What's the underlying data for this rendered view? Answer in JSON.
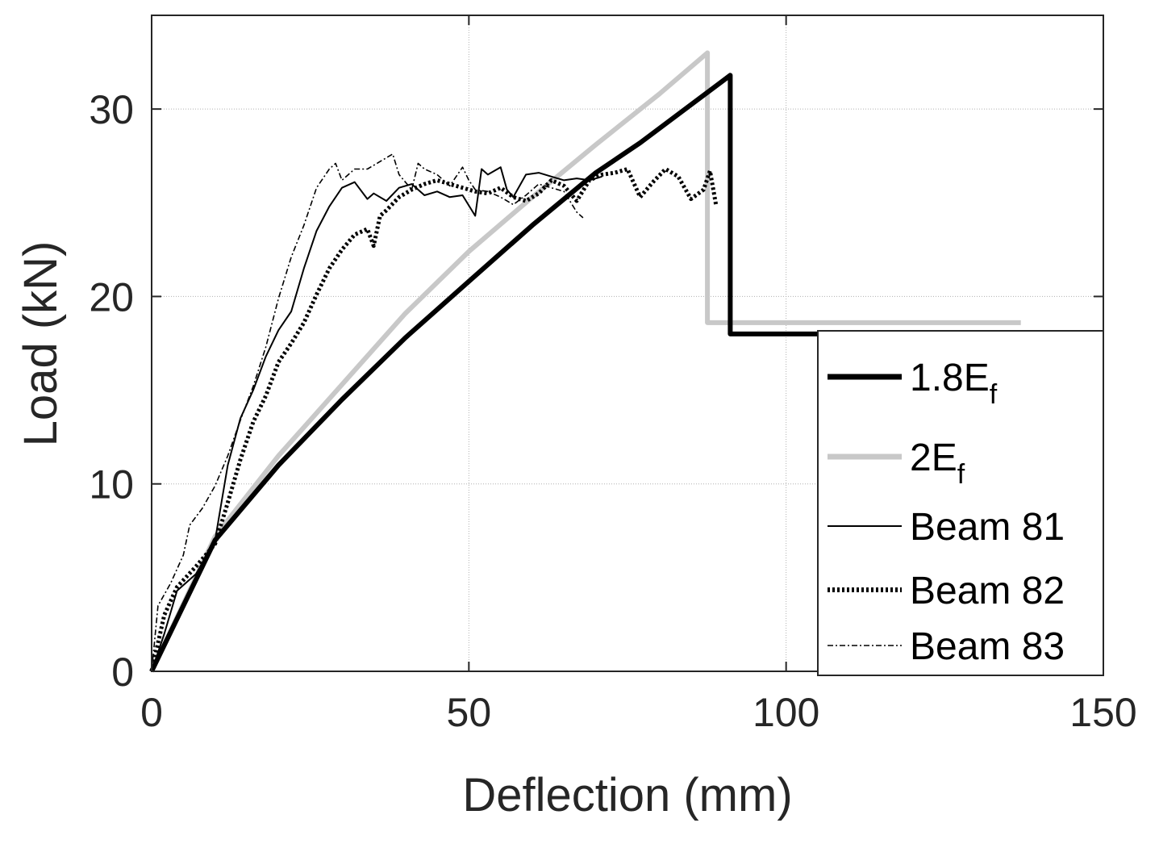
{
  "chart_data": {
    "type": "line",
    "title": "",
    "xlabel": "Deflection (mm)",
    "ylabel": "Load (kN)",
    "xlim": [
      0,
      150
    ],
    "ylim": [
      0,
      35
    ],
    "xticks": [
      0,
      50,
      100,
      150
    ],
    "yticks": [
      0,
      10,
      20,
      30
    ],
    "xtick_labels": [
      "0",
      "50",
      "100",
      "150"
    ],
    "ytick_labels": [
      "0",
      "10",
      "20",
      "30"
    ],
    "grid": true,
    "legend_position": "bottom-right",
    "series": [
      {
        "name": "1.8E",
        "name_sub": "f",
        "style": "thick-solid",
        "color": "#000000",
        "x": [
          0,
          10,
          20,
          30,
          40,
          50,
          60,
          70,
          77,
          91.2,
          91.2,
          105
        ],
        "y": [
          0,
          7,
          11,
          14.5,
          17.8,
          20.8,
          23.8,
          26.6,
          28.2,
          31.8,
          18,
          18
        ]
      },
      {
        "name": "2E",
        "name_sub": "f",
        "style": "thick-solid",
        "color": "#c8c8c8",
        "x": [
          0,
          10,
          20,
          30,
          40,
          50,
          60,
          70,
          80,
          87.6,
          87.6,
          137
        ],
        "y": [
          0,
          7.2,
          11.5,
          15.3,
          19.1,
          22.4,
          25.3,
          28.1,
          30.8,
          33,
          18.6,
          18.6
        ]
      },
      {
        "name": "Beam 81",
        "style": "thin-solid",
        "color": "#000000",
        "x": [
          0,
          2,
          4,
          7,
          10,
          12,
          14,
          16,
          18,
          20,
          22,
          24,
          26,
          28,
          30,
          32,
          34,
          35,
          37,
          39,
          41,
          43,
          45,
          47,
          49,
          51,
          52,
          53,
          55,
          56,
          57,
          59,
          61,
          63,
          65,
          67,
          69,
          71
        ],
        "y": [
          0,
          2,
          4.3,
          5.2,
          7,
          11,
          13.5,
          15,
          16.8,
          18.2,
          19.2,
          21.5,
          23.5,
          24.8,
          25.8,
          26.1,
          25.2,
          25.5,
          25.1,
          25.8,
          26,
          25.4,
          25.6,
          25.3,
          25.4,
          24.3,
          26.8,
          26.5,
          26.9,
          25.7,
          25.3,
          26.5,
          26.6,
          26.4,
          26.2,
          26.3,
          26.2,
          26.4
        ]
      },
      {
        "name": "Beam 82",
        "style": "dotted",
        "color": "#000000",
        "x": [
          0,
          2,
          4,
          7,
          10,
          12,
          14,
          16,
          18,
          20,
          22,
          24,
          26,
          28,
          30,
          32,
          34,
          35,
          36,
          37,
          39,
          41,
          43,
          45,
          47,
          49,
          51,
          53,
          55,
          57,
          59,
          61,
          63,
          65,
          67,
          69,
          71,
          73,
          75,
          77,
          79,
          81,
          83,
          85,
          87,
          88,
          89
        ],
        "y": [
          0,
          3,
          4.5,
          5.6,
          6.8,
          9,
          11.3,
          13.3,
          14.7,
          16.5,
          17.5,
          18.6,
          20.1,
          21.5,
          22.5,
          23.3,
          23.6,
          22.7,
          24.3,
          24.6,
          25.3,
          25.7,
          26,
          26.2,
          26,
          25.8,
          25.6,
          25.5,
          25.8,
          25.3,
          25.1,
          25.5,
          26.2,
          25.9,
          25.1,
          26.2,
          26.5,
          26.6,
          26.8,
          25.3,
          26.1,
          26.8,
          26.4,
          25.2,
          25.7,
          26.7,
          24.8
        ]
      },
      {
        "name": "Beam 83",
        "style": "dash-dot",
        "color": "#000000",
        "x": [
          0,
          1,
          3,
          5,
          6,
          8,
          10,
          12,
          14,
          16,
          18,
          20,
          22,
          24,
          26,
          28,
          29,
          30,
          32,
          34,
          36,
          38,
          39,
          41,
          42,
          43,
          45,
          47,
          49,
          50,
          51,
          53,
          55,
          57,
          59,
          61,
          63,
          65,
          67,
          68
        ],
        "y": [
          0,
          3.5,
          4.7,
          6.2,
          7.8,
          8.7,
          9.9,
          11.5,
          13.4,
          15.2,
          17.3,
          19.9,
          22.1,
          23.8,
          25.8,
          26.8,
          27.1,
          26.2,
          26.8,
          26.8,
          27.2,
          27.6,
          26.5,
          25.7,
          27.1,
          26.8,
          26.5,
          25.9,
          26.9,
          26.2,
          25.7,
          25.6,
          25.3,
          24.9,
          25.4,
          26,
          25.8,
          25.6,
          24.5,
          24.2
        ]
      }
    ]
  }
}
